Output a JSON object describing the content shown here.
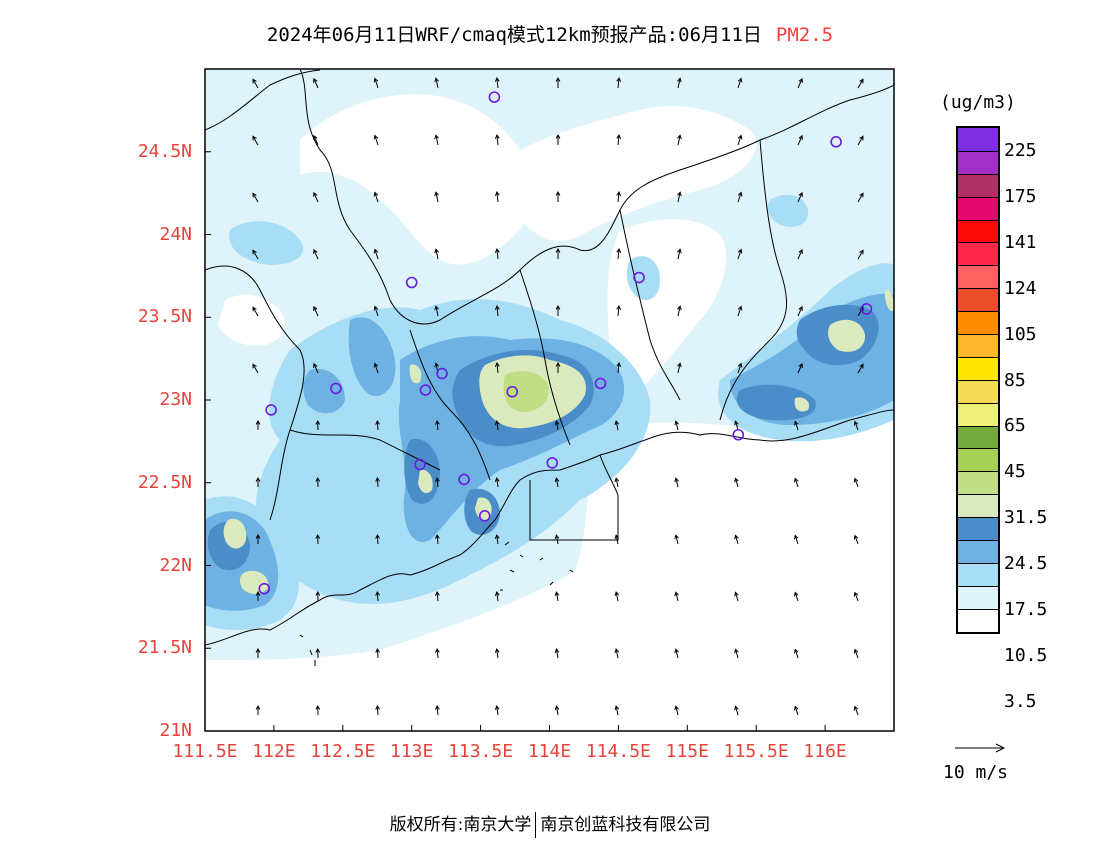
{
  "title": "2024年06月11日WRF/cmaq模式12km预报产品:06月11日",
  "species": "PM2.5",
  "unit": "(ug/m3)",
  "lat_labels": [
    "24.5N",
    "24N",
    "23.5N",
    "23N",
    "22.5N",
    "22N",
    "21.5N",
    "21N"
  ],
  "lon_labels": [
    "111.5E",
    "112E",
    "112.5E",
    "113E",
    "113.5E",
    "114E",
    "114.5E",
    "115E",
    "115.5E",
    "116E"
  ],
  "colorbar": {
    "colors": [
      "#ffffff",
      "#dff3fb",
      "#a8ddf6",
      "#6db2e2",
      "#4a8dc8",
      "#dbe9be",
      "#c0df84",
      "#a6d156",
      "#74a93c",
      "#eef07a",
      "#f5dc58",
      "#ffe600",
      "#ffb732",
      "#ff8c00",
      "#e84f2a",
      "#ff6060",
      "#ff2848",
      "#ff0a0a",
      "#e4086e",
      "#b03063",
      "#a32ec8",
      "#7f2fe0"
    ],
    "labels": [
      "3.5",
      "10.5",
      "17.5",
      "24.5",
      "31.5",
      "45",
      "65",
      "85",
      "105",
      "124",
      "141",
      "175",
      "225"
    ]
  },
  "wind_scale_label": "10 m/s",
  "footer": {
    "left": "版权所有:南京大学",
    "right": "南京创蓝科技有限公司"
  },
  "stations": [
    {
      "lon": 113.6,
      "lat": 24.83
    },
    {
      "lon": 116.08,
      "lat": 24.56
    },
    {
      "lon": 113.0,
      "lat": 23.71
    },
    {
      "lon": 114.65,
      "lat": 23.74
    },
    {
      "lon": 116.3,
      "lat": 23.55
    },
    {
      "lon": 112.45,
      "lat": 23.07
    },
    {
      "lon": 113.1,
      "lat": 23.06
    },
    {
      "lon": 113.22,
      "lat": 23.16
    },
    {
      "lon": 113.73,
      "lat": 23.05
    },
    {
      "lon": 114.37,
      "lat": 23.1
    },
    {
      "lon": 111.98,
      "lat": 22.94
    },
    {
      "lon": 113.06,
      "lat": 22.61
    },
    {
      "lon": 113.38,
      "lat": 22.52
    },
    {
      "lon": 114.02,
      "lat": 22.62
    },
    {
      "lon": 113.53,
      "lat": 22.3
    },
    {
      "lon": 115.37,
      "lat": 22.79
    },
    {
      "lon": 111.93,
      "lat": 21.86
    }
  ]
}
